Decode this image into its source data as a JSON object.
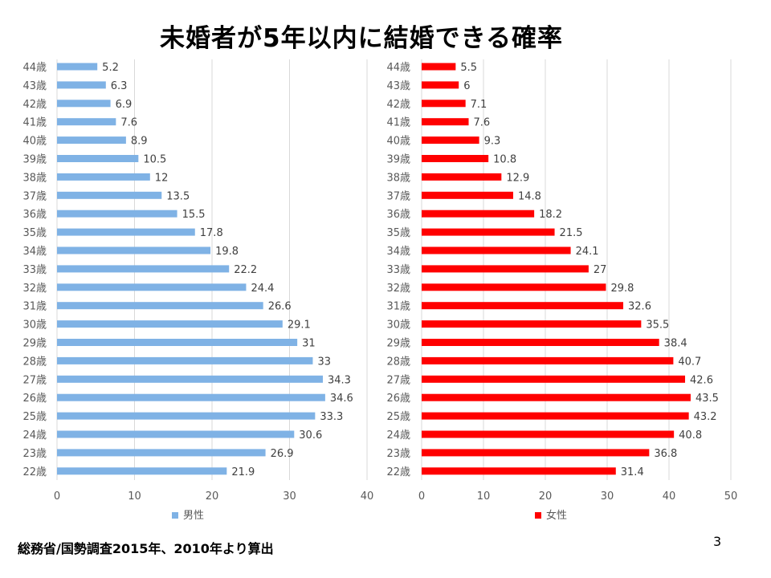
{
  "slide": {
    "title": "未婚者が5年以内に結婚できる確率",
    "source": "総務省/国勢調査2015年、2010年より算出",
    "page_number": "3"
  },
  "chart_data": [
    {
      "type": "bar",
      "orientation": "horizontal",
      "categories": [
        "44歳",
        "43歳",
        "42歳",
        "41歳",
        "40歳",
        "39歳",
        "38歳",
        "37歳",
        "36歳",
        "35歳",
        "34歳",
        "33歳",
        "32歳",
        "31歳",
        "30歳",
        "29歳",
        "28歳",
        "27歳",
        "26歳",
        "25歳",
        "24歳",
        "23歳",
        "22歳"
      ],
      "series": [
        {
          "name": "男性",
          "color": "#7fb2e5",
          "values": [
            5.2,
            6.3,
            6.9,
            7.6,
            8.9,
            10.5,
            12,
            13.5,
            15.5,
            17.8,
            19.8,
            22.2,
            24.4,
            26.6,
            29.1,
            31,
            33,
            34.3,
            34.6,
            33.3,
            30.6,
            26.9,
            21.9
          ]
        }
      ],
      "xlim": [
        0,
        40
      ],
      "ticks": [
        0,
        10,
        20,
        30,
        40
      ],
      "grid": true,
      "legend": "bottom"
    },
    {
      "type": "bar",
      "orientation": "horizontal",
      "categories": [
        "44歳",
        "43歳",
        "42歳",
        "41歳",
        "40歳",
        "39歳",
        "38歳",
        "37歳",
        "36歳",
        "35歳",
        "34歳",
        "33歳",
        "32歳",
        "31歳",
        "30歳",
        "29歳",
        "28歳",
        "27歳",
        "26歳",
        "25歳",
        "24歳",
        "23歳",
        "22歳"
      ],
      "series": [
        {
          "name": "女性",
          "color": "#ff0000",
          "values": [
            5.5,
            6,
            7.1,
            7.6,
            9.3,
            10.8,
            12.9,
            14.8,
            18.2,
            21.5,
            24.1,
            27,
            29.8,
            32.6,
            35.5,
            38.4,
            40.7,
            42.6,
            43.5,
            43.2,
            40.8,
            36.8,
            31.4
          ]
        }
      ],
      "xlim": [
        0,
        50
      ],
      "ticks": [
        0,
        10,
        20,
        30,
        40,
        50
      ],
      "grid": true,
      "legend": "bottom"
    }
  ]
}
